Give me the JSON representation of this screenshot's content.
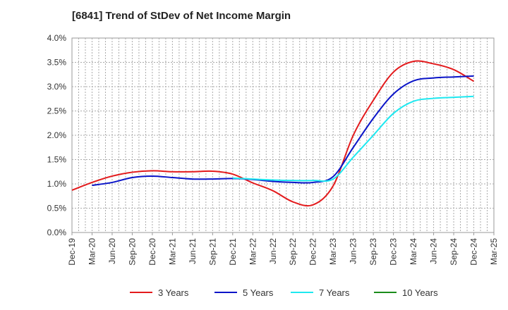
{
  "chart_data": {
    "type": "line",
    "title": "[6841]  Trend of StDev of Net Income Margin",
    "xlabel": "",
    "ylabel": "",
    "x": [
      "Dec-19",
      "Mar-20",
      "Jun-20",
      "Sep-20",
      "Dec-20",
      "Mar-21",
      "Jun-21",
      "Sep-21",
      "Dec-21",
      "Mar-22",
      "Jun-22",
      "Sep-22",
      "Dec-22",
      "Mar-23",
      "Jun-23",
      "Sep-23",
      "Dec-23",
      "Mar-24",
      "Jun-24",
      "Sep-24",
      "Dec-24",
      "Mar-25"
    ],
    "y_ticks": [
      "0.0%",
      "0.5%",
      "1.0%",
      "1.5%",
      "2.0%",
      "2.5%",
      "3.0%",
      "3.5%",
      "4.0%"
    ],
    "ylim": [
      0,
      4.0
    ],
    "grid": true,
    "legend_position": "bottom",
    "series": [
      {
        "name": "3 Years",
        "color": "#e31a1c",
        "values": [
          0.87,
          1.03,
          1.16,
          1.24,
          1.27,
          1.25,
          1.25,
          1.26,
          1.2,
          1.02,
          0.86,
          0.63,
          0.57,
          0.96,
          2.0,
          2.72,
          3.3,
          3.52,
          3.47,
          3.35,
          3.11,
          null
        ]
      },
      {
        "name": "5 Years",
        "color": "#0a14c8",
        "values": [
          null,
          0.97,
          1.03,
          1.13,
          1.16,
          1.13,
          1.1,
          1.1,
          1.11,
          1.09,
          1.05,
          1.03,
          1.03,
          1.15,
          1.75,
          2.35,
          2.85,
          3.12,
          3.18,
          3.2,
          3.22,
          null
        ]
      },
      {
        "name": "7 Years",
        "color": "#1ee8f0",
        "values": [
          null,
          null,
          null,
          null,
          null,
          null,
          null,
          null,
          1.12,
          1.1,
          1.08,
          1.07,
          1.07,
          1.1,
          1.55,
          2.0,
          2.45,
          2.7,
          2.76,
          2.78,
          2.8,
          null
        ]
      },
      {
        "name": "10 Years",
        "color": "#1a8c1a",
        "values": [
          null,
          null,
          null,
          null,
          null,
          null,
          null,
          null,
          null,
          null,
          null,
          null,
          null,
          null,
          null,
          null,
          null,
          null,
          null,
          null,
          null,
          null
        ]
      }
    ]
  }
}
